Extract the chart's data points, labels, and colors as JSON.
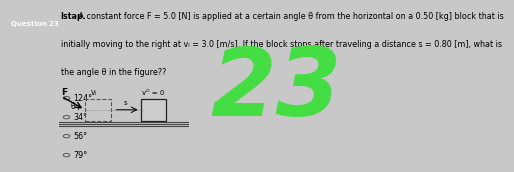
{
  "question_label": "Question 23",
  "question_label_bg": "#b0b0b8",
  "white_panel_bg": "#ffffff",
  "title_bold": "Istap.",
  "line1_rest": " A constant force F = 5.0 [N] is applied at a certain angle θ from the horizontal on a 0.50 [kg] block that is",
  "line2": "initially moving to the right at vᵢ = 3.0 [m/s]. If the block stops after traveling a distance s = 0.80 [m], what is",
  "line3": "the angle θ in the figure??",
  "options": [
    "124°",
    "34°",
    "56°",
    "79°"
  ],
  "answer_number": "23",
  "answer_color": "#44dd44",
  "bg_color": "#c8c8c8",
  "diagram_bg": "#d0d0d0",
  "text_color": "#000000",
  "title_fontsize": 5.8,
  "option_fontsize": 5.8,
  "label_fontsize": 5.5
}
